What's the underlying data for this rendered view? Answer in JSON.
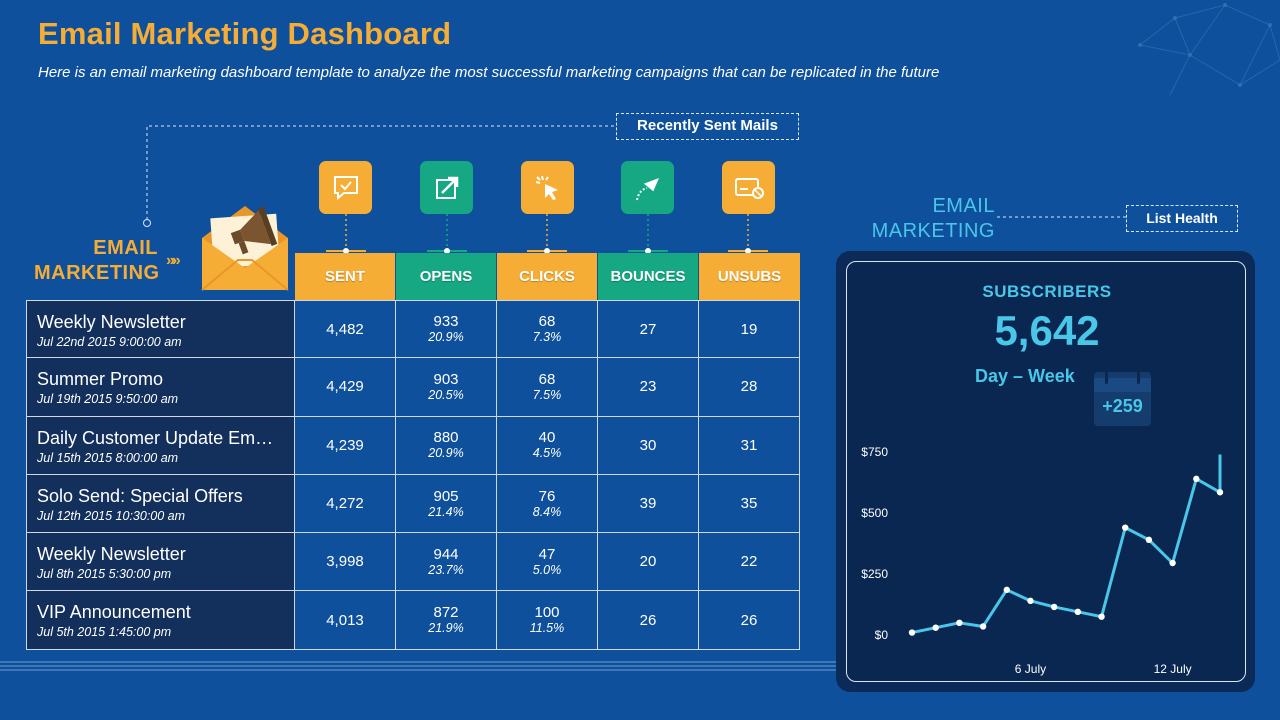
{
  "header": {
    "title": "Email Marketing Dashboard",
    "subtitle": "Here is an email marketing dashboard template to analyze the most successful marketing campaigns that can be replicated in the future"
  },
  "brand": {
    "line1": "EMAIL",
    "line2": "MARKETING",
    "chevrons": "»»"
  },
  "callouts": {
    "recently_sent": "Recently Sent Mails",
    "list_health": "List Health"
  },
  "colors": {
    "background": "#0f509c",
    "accent_orange": "#f6ad35",
    "accent_green": "#16a883",
    "accent_cyan": "#49c6e8",
    "dark_cell": "#13305d"
  },
  "table": {
    "columns": [
      {
        "label": "SENT",
        "icon": "message-check-icon",
        "color": "orange"
      },
      {
        "label": "OPENS",
        "icon": "open-arrow-icon",
        "color": "green"
      },
      {
        "label": "CLICKS",
        "icon": "cursor-click-icon",
        "color": "orange"
      },
      {
        "label": "BOUNCES",
        "icon": "bounce-icon",
        "color": "green"
      },
      {
        "label": "UNSUBS",
        "icon": "unsubscribe-icon",
        "color": "orange"
      }
    ],
    "rows": [
      {
        "name": "Weekly Newsletter",
        "date": "Jul 22nd 2015 9:00:00 am",
        "sent": "4,482",
        "opens": "933",
        "opens_pct": "20.9%",
        "clicks": "68",
        "clicks_pct": "7.3%",
        "bounces": "27",
        "unsubs": "19"
      },
      {
        "name": "Summer Promo",
        "date": "Jul 19th 2015 9:50:00 am",
        "sent": "4,429",
        "opens": "903",
        "opens_pct": "20.5%",
        "clicks": "68",
        "clicks_pct": "7.5%",
        "bounces": "23",
        "unsubs": "28"
      },
      {
        "name": "Daily Customer Update Em…",
        "date": "Jul 15th 2015 8:00:00 am",
        "sent": "4,239",
        "opens": "880",
        "opens_pct": "20.9%",
        "clicks": "40",
        "clicks_pct": "4.5%",
        "bounces": "30",
        "unsubs": "31"
      },
      {
        "name": "Solo Send: Special Offers",
        "date": "Jul 12th 2015 10:30:00 am",
        "sent": "4,272",
        "opens": "905",
        "opens_pct": "21.4%",
        "clicks": "76",
        "clicks_pct": "8.4%",
        "bounces": "39",
        "unsubs": "35"
      },
      {
        "name": "Weekly Newsletter",
        "date": "Jul 8th 2015 5:30:00 pm",
        "sent": "3,998",
        "opens": "944",
        "opens_pct": "23.7%",
        "clicks": "47",
        "clicks_pct": "5.0%",
        "bounces": "20",
        "unsubs": "22"
      },
      {
        "name": "VIP Announcement",
        "date": "Jul 5th 2015 1:45:00 pm",
        "sent": "4,013",
        "opens": "872",
        "opens_pct": "21.9%",
        "clicks": "100",
        "clicks_pct": "11.5%",
        "bounces": "26",
        "unsubs": "26"
      }
    ]
  },
  "health": {
    "label_line1": "EMAIL",
    "label_line2": "MARKETING",
    "subscribers_title": "SUBSCRIBERS",
    "subscribers_value": "5,642",
    "period": "Day – Week",
    "weekly_change": "+259"
  },
  "chart_data": {
    "type": "line",
    "title": "",
    "x": [
      1,
      2,
      3,
      4,
      5,
      6,
      7,
      8,
      9,
      10,
      11,
      12,
      13,
      14
    ],
    "x_ticks": [
      {
        "x": 6,
        "label": "6 July"
      },
      {
        "x": 12,
        "label": "12 July"
      }
    ],
    "series": [
      {
        "name": "Subscribers",
        "values": [
          10,
          30,
          50,
          35,
          185,
          140,
          115,
          95,
          75,
          440,
          390,
          295,
          640,
          585
        ],
        "end_spike": 740
      }
    ],
    "y_ticks": [
      {
        "v": 0,
        "label": "$0"
      },
      {
        "v": 250,
        "label": "$250"
      },
      {
        "v": 500,
        "label": "$500"
      },
      {
        "v": 750,
        "label": "$750"
      }
    ],
    "ylim": [
      0,
      750
    ],
    "grid": false
  }
}
